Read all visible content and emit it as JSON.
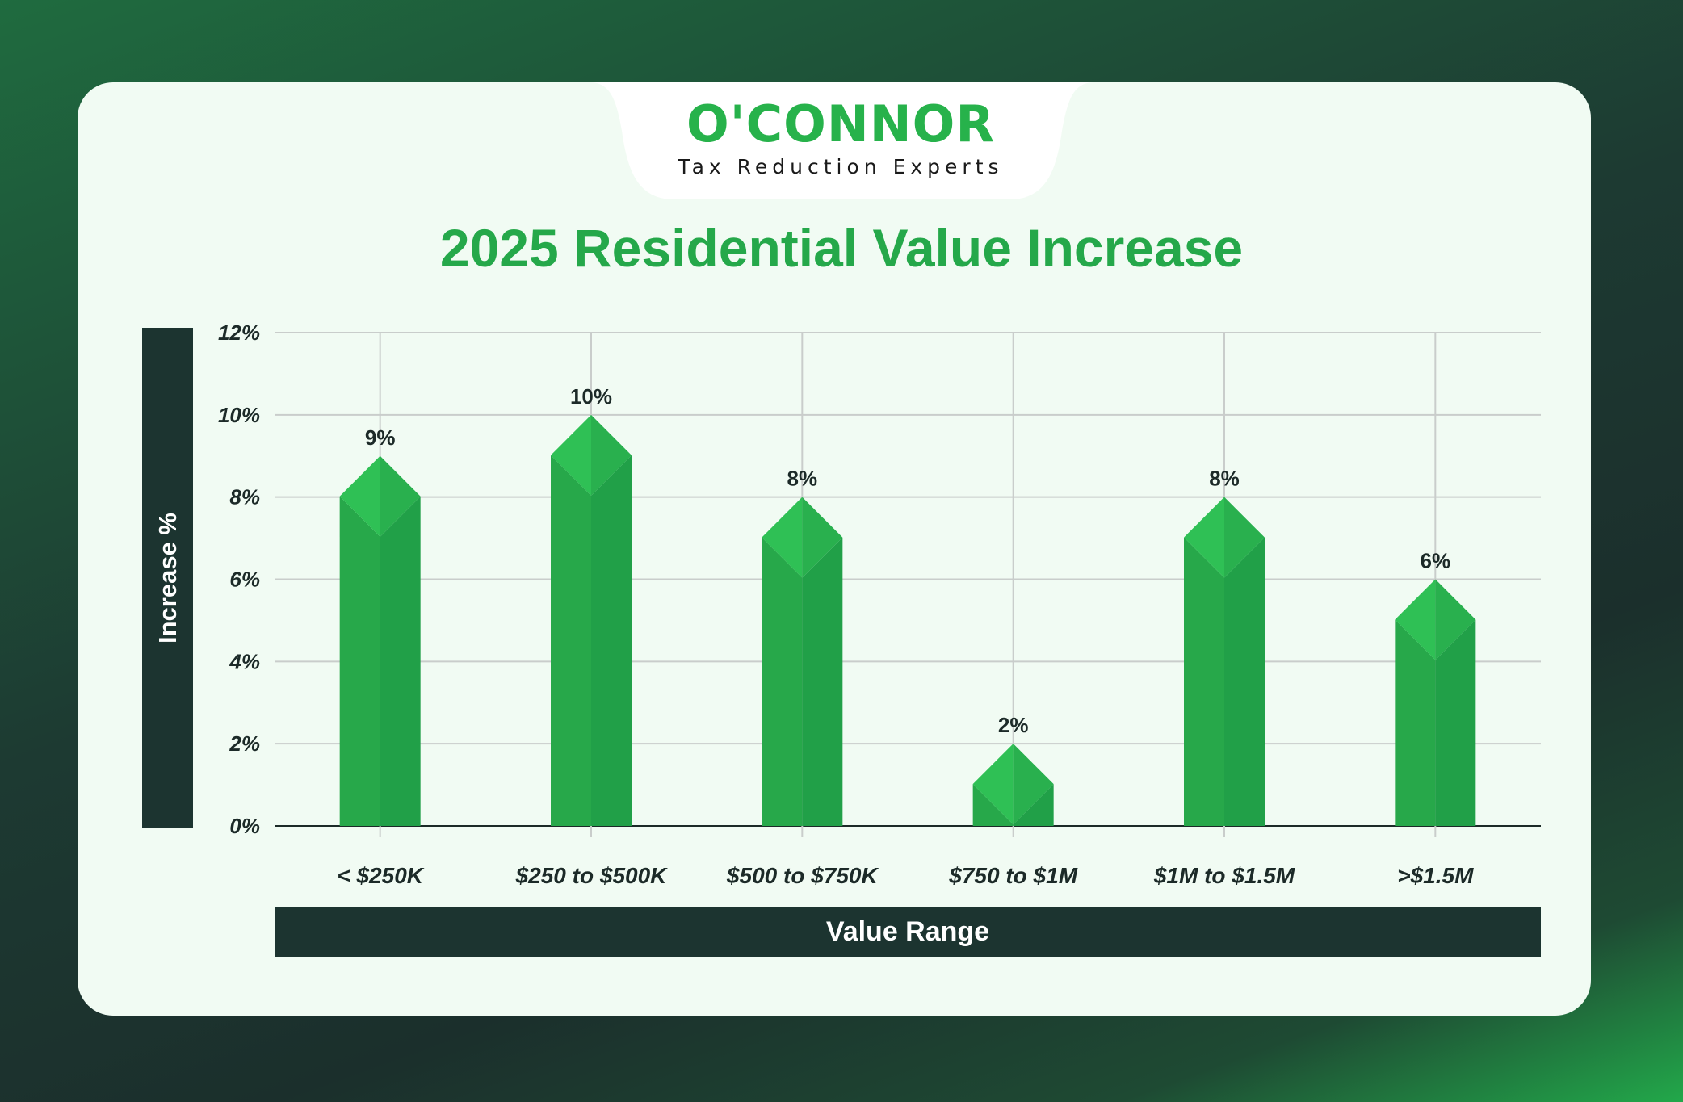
{
  "brand": {
    "name": "O'CONNOR",
    "tagline": "Tax Reduction Experts"
  },
  "colors": {
    "accent": "#27b24b",
    "bar_left": "#27a84a",
    "bar_right": "#21a048",
    "bar_top_left": "#2fc055",
    "bar_top_right": "#29b04e",
    "dark_panel": "#1c3430",
    "card": "#f1fbf3",
    "grid": "#c9cdcb"
  },
  "chart_data": {
    "type": "bar",
    "title": "2025 Residential Value Increase",
    "xlabel": "Value Range",
    "ylabel": "Increase %",
    "categories": [
      "< $250K",
      "$250 to $500K",
      "$500 to $750K",
      "$750 to $1M",
      "$1M to $1.5M",
      ">$1.5M"
    ],
    "values": [
      9,
      10,
      8,
      2,
      8,
      6
    ],
    "value_labels": [
      "9%",
      "10%",
      "8%",
      "2%",
      "8%",
      "6%"
    ],
    "ylim": [
      0,
      12
    ],
    "yticks": [
      0,
      2,
      4,
      6,
      8,
      10,
      12
    ],
    "ytick_labels": [
      "0%",
      "2%",
      "4%",
      "6%",
      "8%",
      "10%",
      "12%"
    ],
    "grid": true,
    "legend": "none"
  }
}
